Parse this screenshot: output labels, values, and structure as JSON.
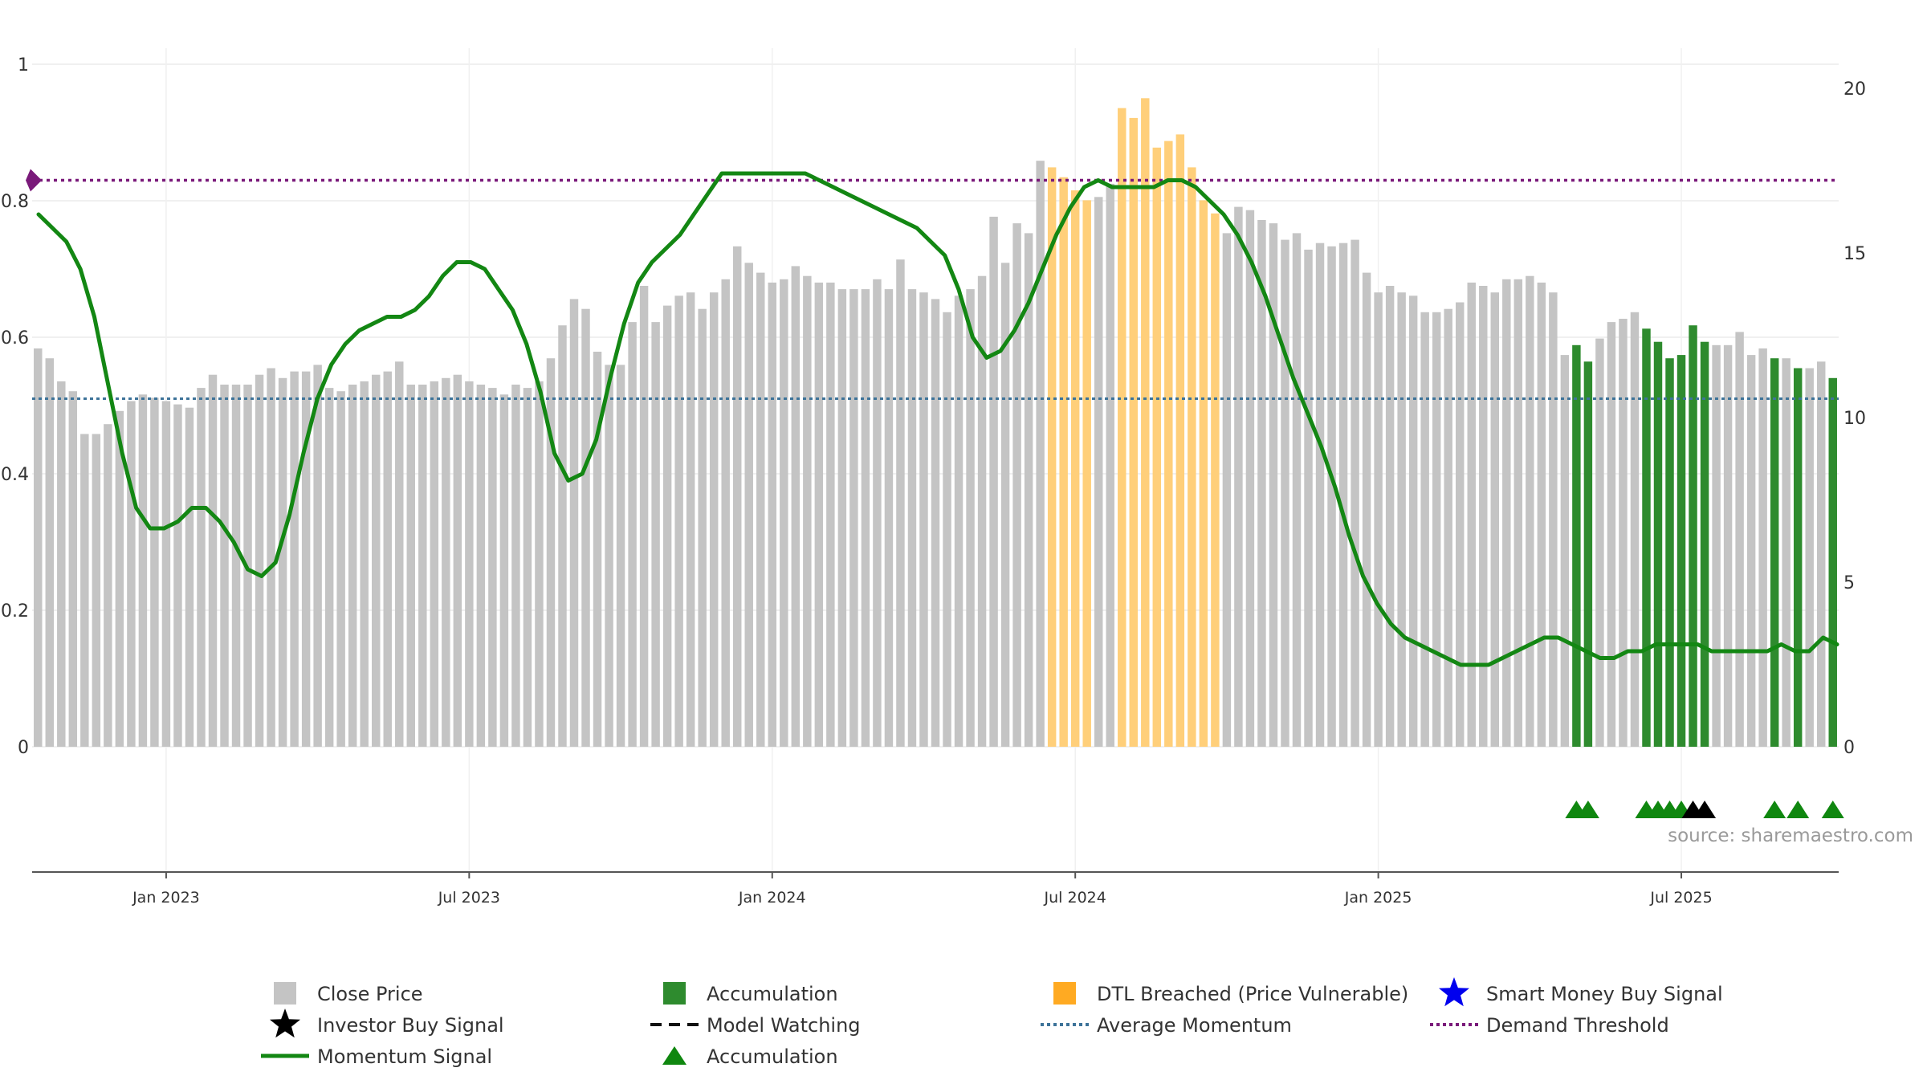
{
  "chart_data": {
    "type": "bar",
    "source": "source: sharemaestro.com",
    "colors": {
      "close": "#c4c4c4",
      "accumulation": "#2e8b2e",
      "dtl": "#ffcf7a",
      "momentum": "#138713",
      "average": "#3d7399",
      "demand": "#7a1a7a",
      "investor": "#000000",
      "smart_money": "#0000ee",
      "marker_green": "#0f870f"
    },
    "left_axis": {
      "ticks": [
        "0",
        "0.2",
        "0.4",
        "0.6",
        "0.8",
        "1"
      ],
      "range": [
        0,
        1
      ]
    },
    "right_axis": {
      "ticks": [
        "0",
        "5",
        "10",
        "15",
        "20"
      ],
      "range": [
        0,
        20
      ]
    },
    "x_axis": {
      "ticks": [
        "Jan 2023",
        "Jul 2023",
        "Jan 2024",
        "Jul 2024",
        "Jan 2025",
        "Jul 2025"
      ],
      "tick_positions": [
        11,
        37,
        63,
        89,
        115,
        141
      ]
    },
    "bar_types": {
      "accumulation_start": 132,
      "dtl_ranges": [
        [
          87,
          90
        ],
        [
          93,
          101
        ]
      ],
      "accumulation_indices": [
        132,
        133,
        138,
        139,
        140,
        141,
        142,
        143,
        149,
        151,
        154
      ]
    },
    "close_price": [
      12.1,
      11.8,
      11.1,
      10.8,
      9.5,
      9.5,
      9.8,
      10.2,
      10.5,
      10.7,
      10.6,
      10.5,
      10.4,
      10.3,
      10.9,
      11.3,
      11.0,
      11.0,
      11.0,
      11.3,
      11.5,
      11.2,
      11.4,
      11.4,
      11.6,
      10.9,
      10.8,
      11.0,
      11.1,
      11.3,
      11.4,
      11.7,
      11.0,
      11.0,
      11.1,
      11.2,
      11.3,
      11.1,
      11.0,
      10.9,
      10.7,
      11.0,
      10.9,
      11.1,
      11.8,
      12.8,
      13.6,
      13.3,
      12.0,
      11.6,
      11.6,
      12.9,
      14.0,
      12.9,
      13.4,
      13.7,
      13.8,
      13.3,
      13.8,
      14.2,
      15.2,
      14.7,
      14.4,
      14.1,
      14.2,
      14.6,
      14.3,
      14.1,
      14.1,
      13.9,
      13.9,
      13.9,
      14.2,
      13.9,
      14.8,
      13.9,
      13.8,
      13.6,
      13.2,
      13.7,
      13.9,
      14.3,
      16.1,
      14.7,
      15.9,
      15.6,
      17.8,
      17.6,
      17.3,
      16.9,
      16.6,
      16.7,
      17.1,
      19.4,
      19.1,
      19.7,
      18.2,
      18.4,
      18.6,
      17.6,
      16.6,
      16.2,
      15.6,
      16.4,
      16.3,
      16.0,
      15.9,
      15.4,
      15.6,
      15.1,
      15.3,
      15.2,
      15.3,
      15.4,
      14.4,
      13.8,
      14.0,
      13.8,
      13.7,
      13.2,
      13.2,
      13.3,
      13.5,
      14.1,
      14.0,
      13.8,
      14.2,
      14.2,
      14.3,
      14.1,
      13.8,
      11.9,
      12.2,
      11.7,
      12.4,
      12.9,
      13.0,
      13.2,
      12.7,
      12.3,
      11.8,
      11.9,
      12.8,
      12.3,
      12.2,
      12.2,
      12.6,
      11.9,
      12.1,
      11.8,
      11.8,
      11.5,
      11.5,
      11.7,
      11.2
    ],
    "momentum": [
      0.78,
      0.76,
      0.74,
      0.7,
      0.63,
      0.53,
      0.43,
      0.35,
      0.32,
      0.32,
      0.33,
      0.35,
      0.35,
      0.33,
      0.3,
      0.26,
      0.25,
      0.27,
      0.34,
      0.43,
      0.51,
      0.56,
      0.59,
      0.61,
      0.62,
      0.63,
      0.63,
      0.64,
      0.66,
      0.69,
      0.71,
      0.71,
      0.7,
      0.67,
      0.64,
      0.59,
      0.52,
      0.43,
      0.39,
      0.4,
      0.45,
      0.54,
      0.62,
      0.68,
      0.71,
      0.73,
      0.75,
      0.78,
      0.81,
      0.84,
      0.84,
      0.84,
      0.84,
      0.84,
      0.84,
      0.84,
      0.83,
      0.82,
      0.81,
      0.8,
      0.79,
      0.78,
      0.77,
      0.76,
      0.74,
      0.72,
      0.67,
      0.6,
      0.57,
      0.58,
      0.61,
      0.65,
      0.7,
      0.75,
      0.79,
      0.82,
      0.83,
      0.82,
      0.82,
      0.82,
      0.82,
      0.83,
      0.83,
      0.82,
      0.8,
      0.78,
      0.75,
      0.71,
      0.66,
      0.6,
      0.54,
      0.49,
      0.44,
      0.38,
      0.31,
      0.25,
      0.21,
      0.18,
      0.16,
      0.15,
      0.14,
      0.13,
      0.12,
      0.12,
      0.12,
      0.13,
      0.14,
      0.15,
      0.16,
      0.16,
      0.15,
      0.14,
      0.13,
      0.13,
      0.14,
      0.14,
      0.15,
      0.15,
      0.15,
      0.15,
      0.14,
      0.14,
      0.14,
      0.14,
      0.14,
      0.15,
      0.14,
      0.14,
      0.16,
      0.15
    ],
    "average_momentum": 0.51,
    "demand_threshold": 0.83,
    "markers": {
      "accumulation": [
        132,
        133,
        138,
        139,
        140,
        141,
        149,
        151,
        154
      ],
      "investor": [
        142,
        143
      ]
    },
    "legend": [
      {
        "label": "Close Price",
        "symbol": "square-gray"
      },
      {
        "label": "Accumulation",
        "symbol": "square-green"
      },
      {
        "label": "DTL Breached (Price Vulnerable)",
        "symbol": "square-orange"
      },
      {
        "label": "Smart Money Buy Signal",
        "symbol": "star-blue"
      },
      {
        "label": "Investor Buy Signal",
        "symbol": "star-black"
      },
      {
        "label": "Model Watching",
        "symbol": "dash-black"
      },
      {
        "label": "Average Momentum",
        "symbol": "dot-blue"
      },
      {
        "label": "Demand Threshold",
        "symbol": "dot-purple"
      },
      {
        "label": "Momentum Signal",
        "symbol": "line-green"
      },
      {
        "label": "Accumulation",
        "symbol": "triangle-green"
      }
    ]
  }
}
